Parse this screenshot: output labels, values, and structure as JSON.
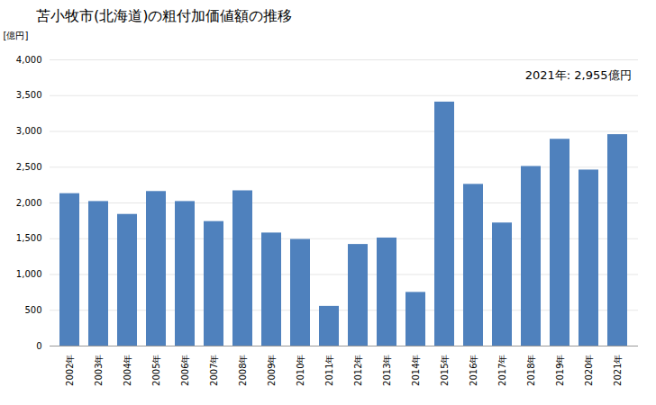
{
  "chart_data": {
    "type": "bar",
    "title": "苫小牧市(北海道)の粗付加価値額の推移",
    "ylabel": "[億円]",
    "annotation": "2021年: 2,955億円",
    "categories": [
      "2002年",
      "2003年",
      "2004年",
      "2005年",
      "2006年",
      "2007年",
      "2008年",
      "2009年",
      "2010年",
      "2011年",
      "2012年",
      "2013年",
      "2014年",
      "2015年",
      "2016年",
      "2017年",
      "2018年",
      "2019年",
      "2020年",
      "2021年"
    ],
    "values": [
      2130,
      2020,
      1840,
      2160,
      2020,
      1740,
      2170,
      1580,
      1490,
      555,
      1420,
      1510,
      750,
      3410,
      2260,
      1720,
      2510,
      2890,
      2460,
      2955
    ],
    "color": "#4f81bd",
    "ylim": [
      0,
      4000
    ],
    "yticks": [
      0,
      500,
      {
        "value": 1000,
        "label": "1,000"
      },
      {
        "value": 1500,
        "label": "1,500"
      },
      {
        "value": 2000,
        "label": "2,000"
      },
      {
        "value": 2500,
        "label": "2,500"
      },
      {
        "value": 3000,
        "label": "3,000"
      },
      {
        "value": 3500,
        "label": "3,500"
      },
      {
        "value": 4000,
        "label": "4,000"
      }
    ],
    "grid": true
  }
}
